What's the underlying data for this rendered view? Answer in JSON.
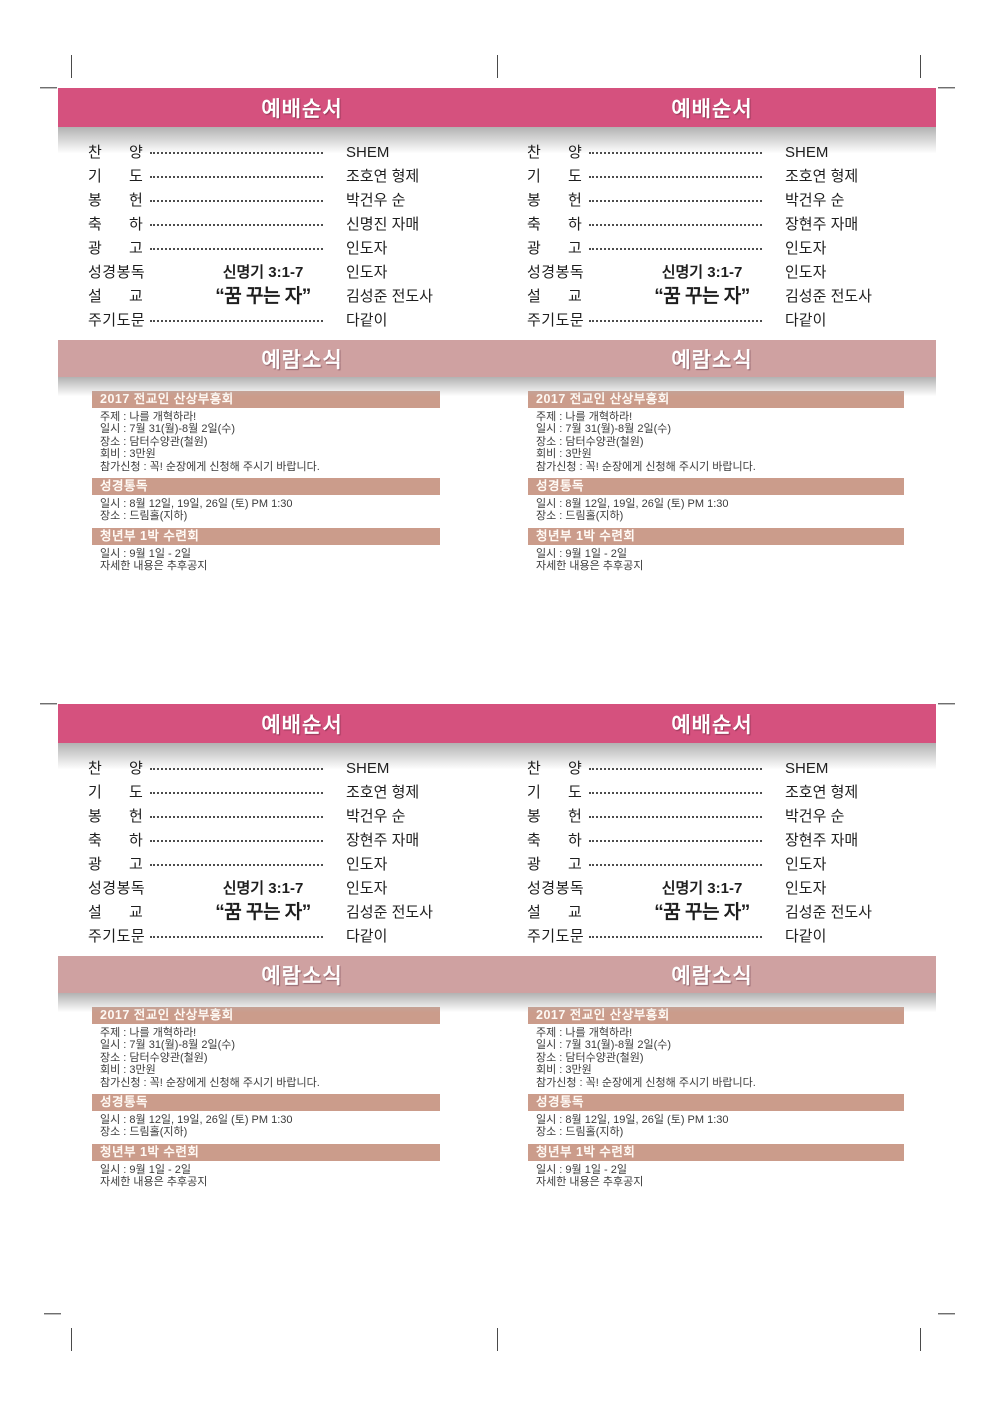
{
  "colors": {
    "header_bar": "#d5517e",
    "news_bar": "#cfa1a1",
    "section_heading": "#cb9c8b"
  },
  "titles": {
    "worship": "예배순서",
    "news": "예람소식"
  },
  "panels": [
    {
      "worship_rows": [
        {
          "label": "찬 양",
          "dots": true,
          "value": "SHEM"
        },
        {
          "label": "기 도",
          "dots": true,
          "value": "조호연 형제"
        },
        {
          "label": "봉 헌",
          "dots": true,
          "value": "박건우 순"
        },
        {
          "label": "축 하",
          "dots": true,
          "value": "신명진 자매"
        },
        {
          "label": "광 고",
          "dots": true,
          "value": "인도자"
        },
        {
          "label": "성경봉독",
          "detail": "신명기 3:1-7",
          "value": "인도자"
        },
        {
          "label": "설 교",
          "detail": "“꿈 꾸는 자”",
          "detail_large": true,
          "value": "김성준 전도사"
        },
        {
          "label": "주기도문",
          "dots": true,
          "value": "다같이"
        }
      ],
      "news_sections": [
        {
          "heading": "2017 전교인 산상부흥회",
          "lines": [
            "주제 : 나를 개혁하라!",
            "일시 : 7월 31(월)-8월 2일(수)",
            "장소 : 담터수양관(철원)",
            "회비 : 3만원",
            "참가신청 : 꼭! 순장에게 신청해 주시기 바랍니다."
          ]
        },
        {
          "heading": "성경통독",
          "lines": [
            "일시 : 8월 12일, 19일, 26일 (토) PM 1:30",
            "장소 : 드림홀(지하)"
          ]
        },
        {
          "heading": "청년부 1박 수련회",
          "lines": [
            "일시 : 9월 1일 - 2일",
            "자세한 내용은 추후공지"
          ]
        }
      ]
    },
    {
      "worship_rows": [
        {
          "label": "찬 양",
          "dots": true,
          "value": "SHEM"
        },
        {
          "label": "기 도",
          "dots": true,
          "value": "조호연 형제"
        },
        {
          "label": "봉 헌",
          "dots": true,
          "value": "박건우 순"
        },
        {
          "label": "축 하",
          "dots": true,
          "value": "장현주 자매"
        },
        {
          "label": "광 고",
          "dots": true,
          "value": "인도자"
        },
        {
          "label": "성경봉독",
          "detail": "신명기 3:1-7",
          "value": "인도자"
        },
        {
          "label": "설 교",
          "detail": "“꿈 꾸는 자”",
          "detail_large": true,
          "value": "김성준 전도사"
        },
        {
          "label": "주기도문",
          "dots": true,
          "value": "다같이"
        }
      ],
      "news_sections": [
        {
          "heading": "2017 전교인 산상부흥회",
          "lines": [
            "주제 : 나를 개혁하라!",
            "일시 : 7월 31(월)-8월 2일(수)",
            "장소 : 담터수양관(철원)",
            "회비 : 3만원",
            "참가신청 : 꼭! 순장에게 신청해 주시기 바랍니다."
          ]
        },
        {
          "heading": "성경통독",
          "lines": [
            "일시 : 8월 12일, 19일, 26일 (토) PM 1:30",
            "장소 : 드림홀(지하)"
          ]
        },
        {
          "heading": "청년부 1박 수련회",
          "lines": [
            "일시 : 9월 1일 - 2일",
            "자세한 내용은 추후공지"
          ]
        }
      ]
    },
    {
      "worship_rows": [
        {
          "label": "찬 양",
          "dots": true,
          "value": "SHEM"
        },
        {
          "label": "기 도",
          "dots": true,
          "value": "조호연 형제"
        },
        {
          "label": "봉 헌",
          "dots": true,
          "value": "박건우 순"
        },
        {
          "label": "축 하",
          "dots": true,
          "value": "장현주 자매"
        },
        {
          "label": "광 고",
          "dots": true,
          "value": "인도자"
        },
        {
          "label": "성경봉독",
          "detail": "신명기 3:1-7",
          "value": "인도자"
        },
        {
          "label": "설 교",
          "detail": "“꿈 꾸는 자”",
          "detail_large": true,
          "value": "김성준 전도사"
        },
        {
          "label": "주기도문",
          "dots": true,
          "value": "다같이"
        }
      ],
      "news_sections": [
        {
          "heading": "2017 전교인 산상부흥회",
          "lines": [
            "주제 : 나를 개혁하라!",
            "일시 : 7월 31(월)-8월 2일(수)",
            "장소 : 담터수양관(철원)",
            "회비 : 3만원",
            "참가신청 : 꼭! 순장에게 신청해 주시기 바랍니다."
          ]
        },
        {
          "heading": "성경통독",
          "lines": [
            "일시 : 8월 12일, 19일, 26일 (토) PM 1:30",
            "장소 : 드림홀(지하)"
          ]
        },
        {
          "heading": "청년부 1박 수련회",
          "lines": [
            "일시 : 9월 1일 - 2일",
            "자세한 내용은 추후공지"
          ]
        }
      ]
    },
    {
      "worship_rows": [
        {
          "label": "찬 양",
          "dots": true,
          "value": "SHEM"
        },
        {
          "label": "기 도",
          "dots": true,
          "value": "조호연 형제"
        },
        {
          "label": "봉 헌",
          "dots": true,
          "value": "박건우 순"
        },
        {
          "label": "축 하",
          "dots": true,
          "value": "장현주 자매"
        },
        {
          "label": "광 고",
          "dots": true,
          "value": "인도자"
        },
        {
          "label": "성경봉독",
          "detail": "신명기 3:1-7",
          "value": "인도자"
        },
        {
          "label": "설 교",
          "detail": "“꿈 꾸는 자”",
          "detail_large": true,
          "value": "김성준 전도사"
        },
        {
          "label": "주기도문",
          "dots": true,
          "value": "다같이"
        }
      ],
      "news_sections": [
        {
          "heading": "2017 전교인 산상부흥회",
          "lines": [
            "주제 : 나를 개혁하라!",
            "일시 : 7월 31(월)-8월 2일(수)",
            "장소 : 담터수양관(철원)",
            "회비 : 3만원",
            "참가신청 : 꼭! 순장에게 신청해 주시기 바랍니다."
          ]
        },
        {
          "heading": "성경통독",
          "lines": [
            "일시 : 8월 12일, 19일, 26일 (토) PM 1:30",
            "장소 : 드림홀(지하)"
          ]
        },
        {
          "heading": "청년부 1박 수련회",
          "lines": [
            "일시 : 9월 1일 - 2일",
            "자세한 내용은 추후공지"
          ]
        }
      ]
    }
  ]
}
